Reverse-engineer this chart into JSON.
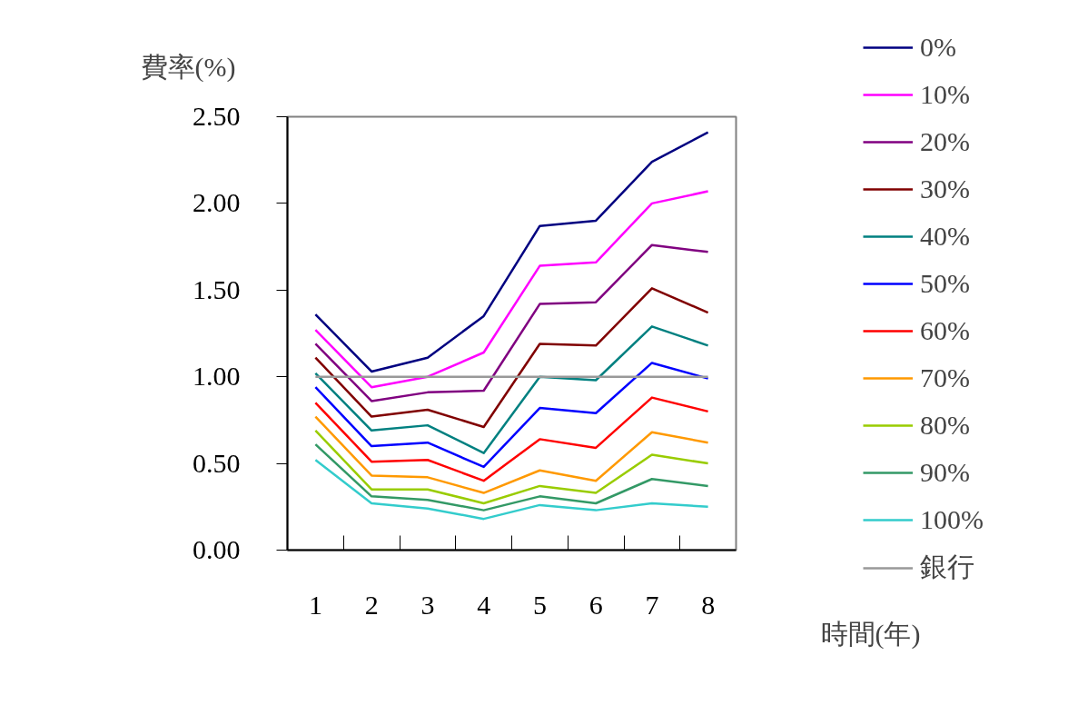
{
  "chart_data": {
    "type": "line",
    "ylabel": "費率(%)",
    "xlabel": "時間(年)",
    "x": [
      1,
      2,
      3,
      4,
      5,
      6,
      7,
      8
    ],
    "xlim": [
      0.5,
      8.5
    ],
    "xticks": [
      1,
      2,
      3,
      4,
      5,
      6,
      7,
      8
    ],
    "ylim": [
      0,
      2.5
    ],
    "yticks": [
      {
        "value": 0,
        "label": "0.00"
      },
      {
        "value": 0.5,
        "label": "0.50"
      },
      {
        "value": 1,
        "label": "1.00"
      },
      {
        "value": 1.5,
        "label": "1.50"
      },
      {
        "value": 2,
        "label": "2.00"
      },
      {
        "value": 2.5,
        "label": "2.50"
      }
    ],
    "grid": false,
    "legend": "right",
    "marker": "none",
    "line_style": "solid",
    "series": [
      {
        "name": "0%",
        "color": "#000080",
        "values": [
          1.36,
          1.03,
          1.11,
          1.35,
          1.87,
          1.9,
          2.24,
          2.41
        ]
      },
      {
        "name": "10%",
        "color": "#ff00ff",
        "values": [
          1.27,
          0.94,
          1.0,
          1.14,
          1.64,
          1.66,
          2.0,
          2.07
        ]
      },
      {
        "name": "20%",
        "color": "#800080",
        "values": [
          1.19,
          0.86,
          0.91,
          0.92,
          1.42,
          1.43,
          1.76,
          1.72
        ]
      },
      {
        "name": "30%",
        "color": "#800000",
        "values": [
          1.11,
          0.77,
          0.81,
          0.71,
          1.19,
          1.18,
          1.51,
          1.37
        ]
      },
      {
        "name": "40%",
        "color": "#008080",
        "values": [
          1.02,
          0.69,
          0.72,
          0.56,
          1.0,
          0.98,
          1.29,
          1.18
        ]
      },
      {
        "name": "50%",
        "color": "#0000ff",
        "values": [
          0.94,
          0.6,
          0.62,
          0.48,
          0.82,
          0.79,
          1.08,
          0.99
        ]
      },
      {
        "name": "60%",
        "color": "#ff0000",
        "values": [
          0.85,
          0.51,
          0.52,
          0.4,
          0.64,
          0.59,
          0.88,
          0.8
        ]
      },
      {
        "name": "70%",
        "color": "#ff9900",
        "values": [
          0.77,
          0.43,
          0.42,
          0.33,
          0.46,
          0.4,
          0.68,
          0.62
        ]
      },
      {
        "name": "80%",
        "color": "#99cc00",
        "values": [
          0.69,
          0.35,
          0.35,
          0.27,
          0.37,
          0.33,
          0.55,
          0.5
        ]
      },
      {
        "name": "90%",
        "color": "#339966",
        "values": [
          0.61,
          0.31,
          0.29,
          0.23,
          0.31,
          0.27,
          0.41,
          0.37
        ]
      },
      {
        "name": "100%",
        "color": "#33cccc",
        "values": [
          0.52,
          0.27,
          0.24,
          0.18,
          0.26,
          0.23,
          0.27,
          0.25
        ]
      },
      {
        "name": "銀行",
        "color": "#999999",
        "values": [
          1.0,
          1.0,
          1.0,
          1.0,
          1.0,
          1.0,
          1.0,
          1.0
        ]
      }
    ]
  }
}
